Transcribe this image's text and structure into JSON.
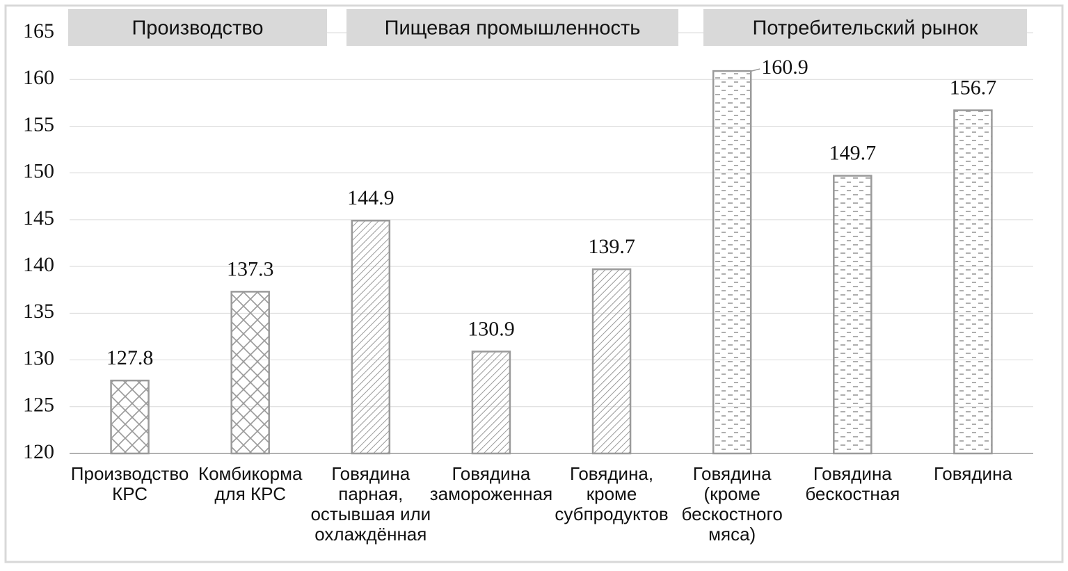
{
  "chart_data": {
    "type": "bar",
    "groups": [
      "Производство",
      "Пищевая промышленность",
      "Потребительский рынок"
    ],
    "categories": [
      "Производство\nКРС",
      "Комбикорма\nдля КРС",
      "Говядина\nпарная,\nостывшая или\nохлаждённая",
      "Говядина\nзамороженная",
      "Говядина,\nкроме\nсубпродуктов",
      "Говядина\n(кроме\nбескостного\nмяса)",
      "Говядина\nбескостная",
      "Говядина"
    ],
    "values": [
      127.8,
      137.3,
      144.9,
      130.9,
      139.7,
      160.9,
      149.7,
      156.7
    ],
    "color": "#9a9a9a",
    "ylim": [
      120,
      165
    ],
    "yticks": [
      120,
      125,
      130,
      135,
      140,
      145,
      150,
      155,
      160,
      165
    ],
    "grid": true
  }
}
